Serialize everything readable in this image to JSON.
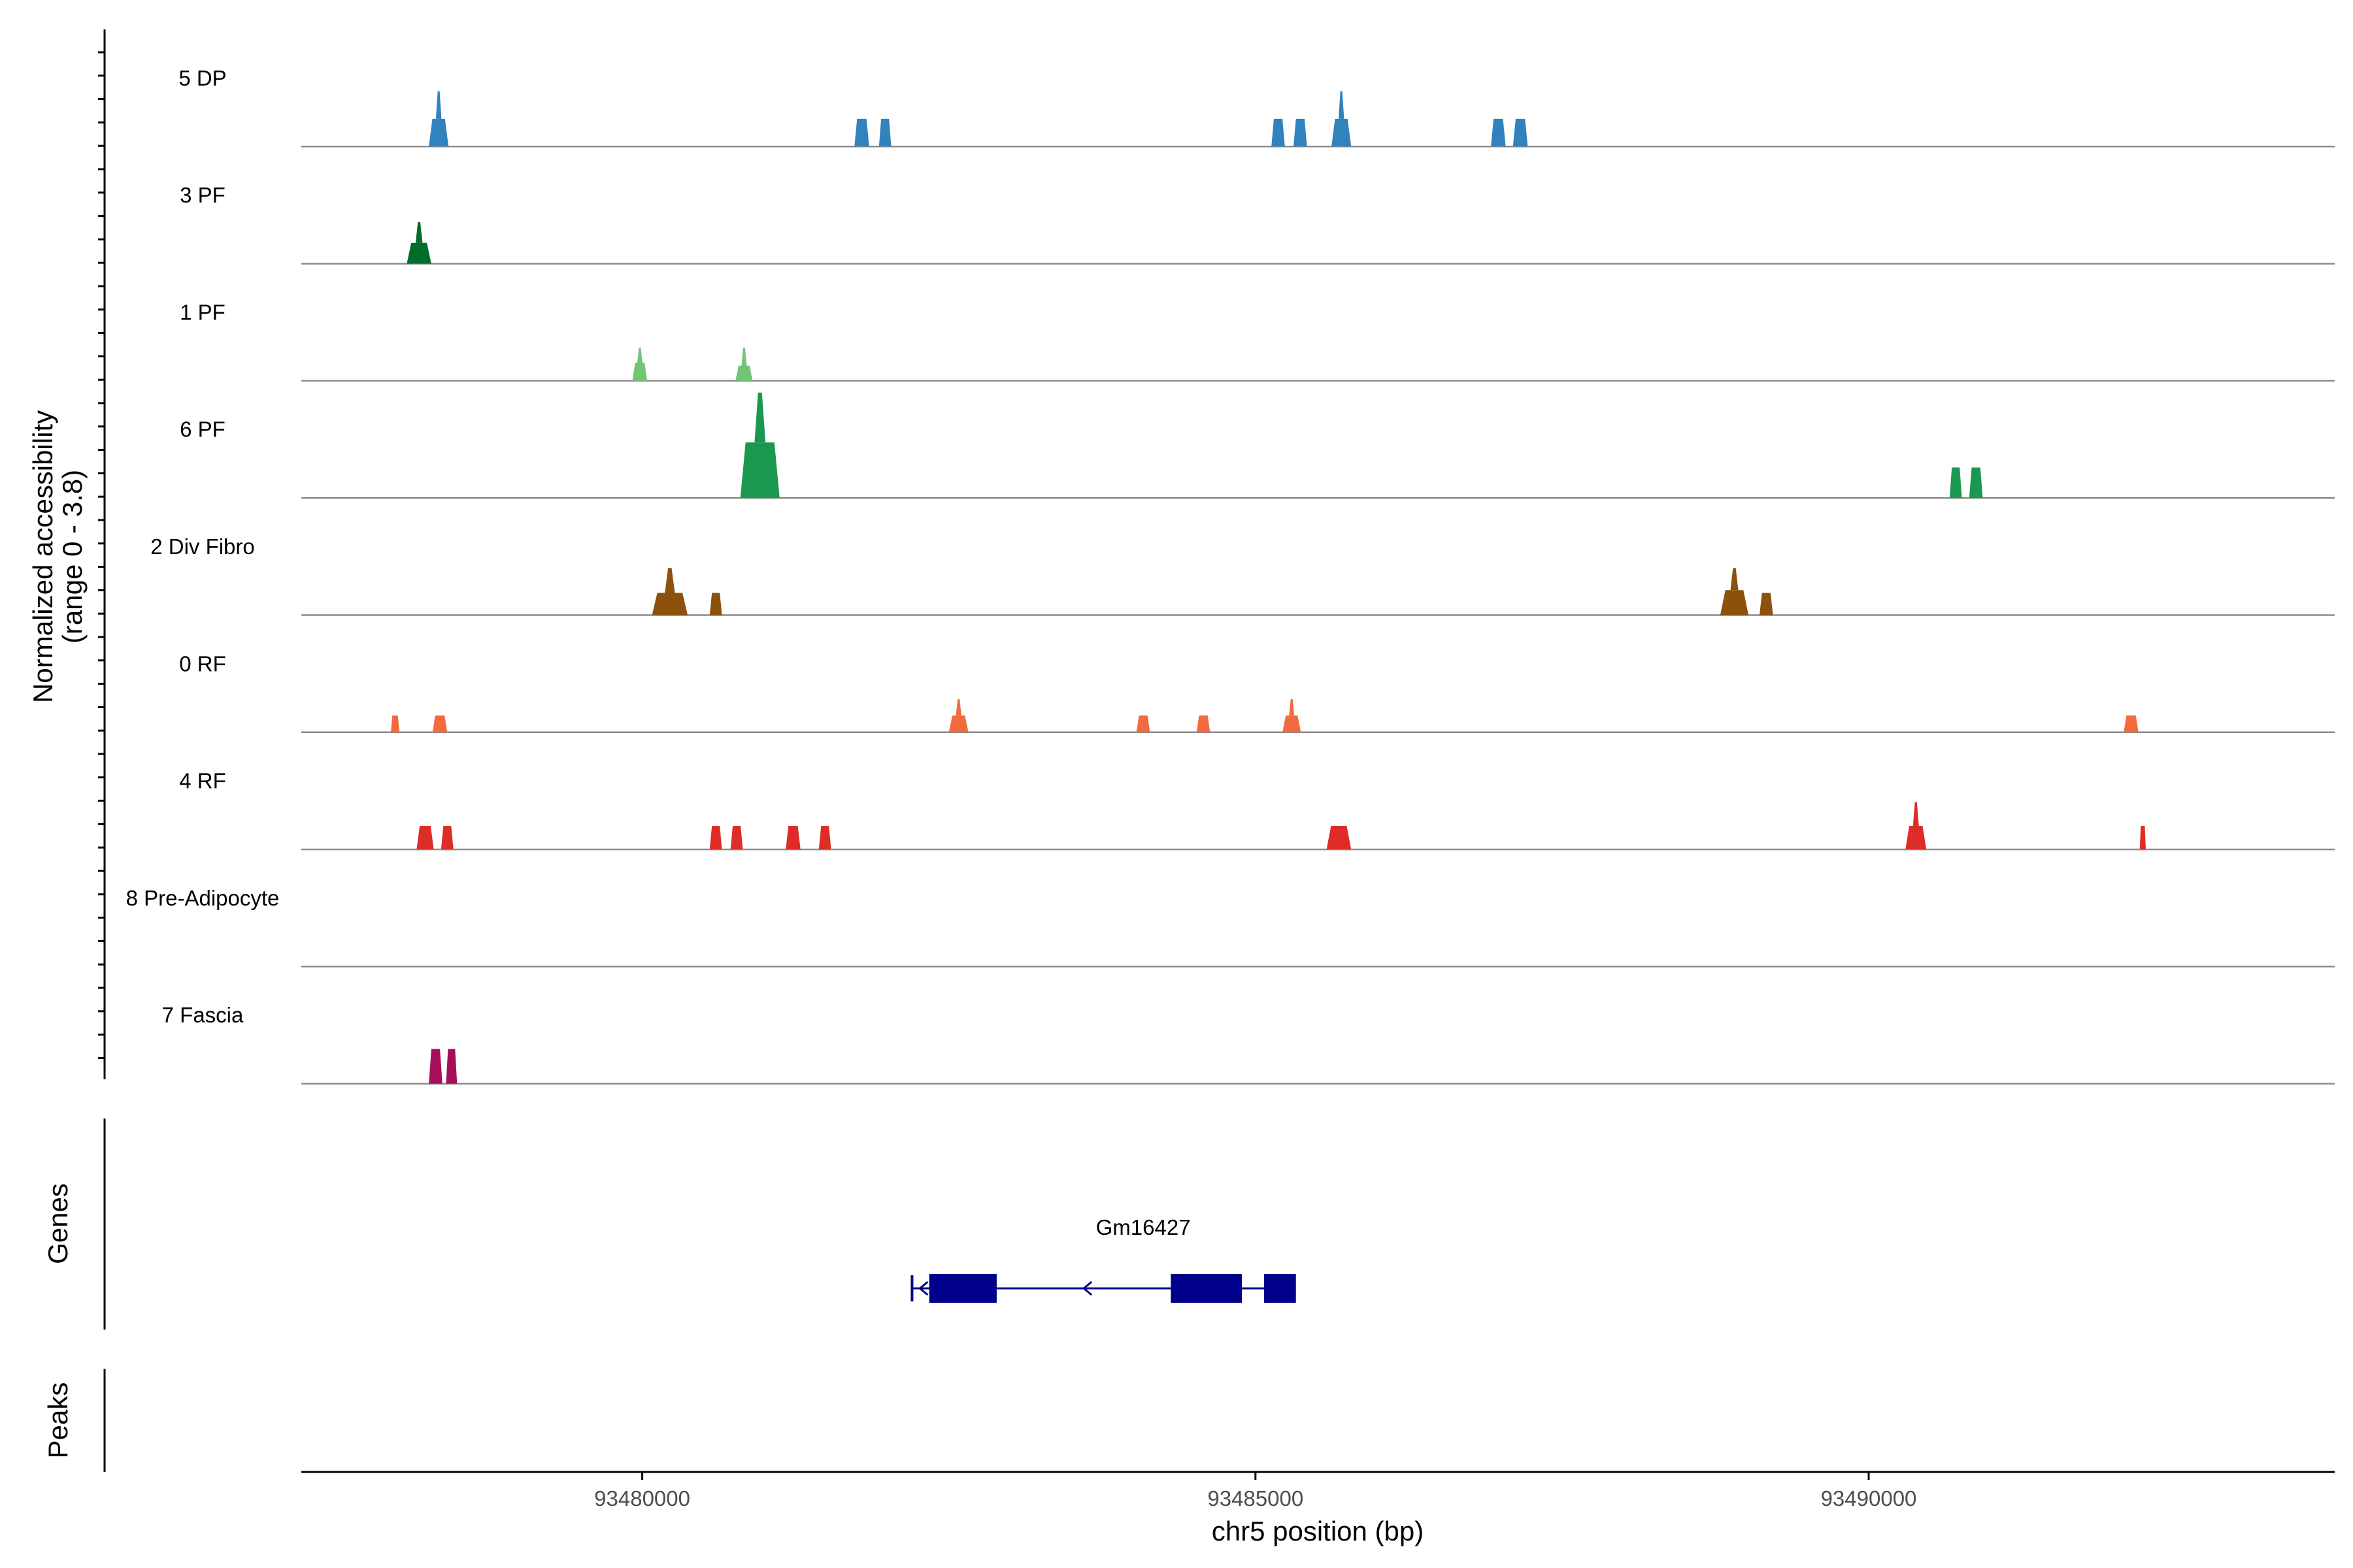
{
  "chart_data": {
    "type": "area",
    "title": "",
    "xlabel": "chr5 position (bp)",
    "ylabel_line1": "Normalized accessibility",
    "ylabel_line2": "(range 0 - 3.8)",
    "yrange": [
      0,
      3.8
    ],
    "xlim": [
      93477220,
      93493800
    ],
    "x_ticks": [
      {
        "value": 93480000,
        "label": "93480000"
      },
      {
        "value": 93485000,
        "label": "93485000"
      },
      {
        "value": 93490000,
        "label": "93490000"
      }
    ],
    "grid": false,
    "tracks": [
      {
        "name": "5 DP",
        "color": "#3182bd",
        "peaks": [
          {
            "start": 93478260,
            "end": 93478420,
            "height": 1.0,
            "spike": 2.0
          },
          {
            "start": 93481730,
            "end": 93481850,
            "height": 1.0
          },
          {
            "start": 93481930,
            "end": 93482030,
            "height": 1.0
          },
          {
            "start": 93485130,
            "end": 93485240,
            "height": 1.0
          },
          {
            "start": 93485310,
            "end": 93485420,
            "height": 1.0
          },
          {
            "start": 93485620,
            "end": 93485780,
            "height": 1.0,
            "spike": 2.0
          },
          {
            "start": 93486920,
            "end": 93487040,
            "height": 1.0
          },
          {
            "start": 93487100,
            "end": 93487220,
            "height": 1.0
          }
        ]
      },
      {
        "name": "3 PF",
        "color": "#006d2c",
        "peaks": [
          {
            "start": 93478080,
            "end": 93478280,
            "height": 0.75,
            "spike": 1.5
          }
        ]
      },
      {
        "name": "1 PF",
        "color": "#74c476",
        "peaks": [
          {
            "start": 93479920,
            "end": 93480040,
            "height": 0.65,
            "spike": 1.2
          },
          {
            "start": 93480760,
            "end": 93480900,
            "height": 0.55,
            "spike": 1.2
          }
        ]
      },
      {
        "name": "6 PF",
        "color": "#1a9850",
        "peaks": [
          {
            "start": 93480800,
            "end": 93481120,
            "height": 2.0,
            "spike": 3.8
          },
          {
            "start": 93490660,
            "end": 93490760,
            "height": 1.1
          },
          {
            "start": 93490820,
            "end": 93490930,
            "height": 1.1
          }
        ]
      },
      {
        "name": "2 Div Fibro",
        "color": "#8c510a",
        "peaks": [
          {
            "start": 93480080,
            "end": 93480370,
            "height": 0.8,
            "spike": 1.7
          },
          {
            "start": 93480550,
            "end": 93480650,
            "height": 0.8
          },
          {
            "start": 93488790,
            "end": 93489020,
            "height": 0.9,
            "spike": 1.7
          },
          {
            "start": 93489110,
            "end": 93489220,
            "height": 0.8
          }
        ]
      },
      {
        "name": "0 RF",
        "color": "#f26a3d",
        "peaks": [
          {
            "start": 93477950,
            "end": 93478020,
            "height": 0.6
          },
          {
            "start": 93478290,
            "end": 93478410,
            "height": 0.6
          },
          {
            "start": 93482500,
            "end": 93482660,
            "height": 0.6,
            "spike": 1.2
          },
          {
            "start": 93484030,
            "end": 93484140,
            "height": 0.6
          },
          {
            "start": 93484520,
            "end": 93484630,
            "height": 0.6
          },
          {
            "start": 93485220,
            "end": 93485370,
            "height": 0.6,
            "spike": 1.2
          },
          {
            "start": 93492080,
            "end": 93492200,
            "height": 0.6
          }
        ]
      },
      {
        "name": "4 RF",
        "color": "#de2d26",
        "peaks": [
          {
            "start": 93478160,
            "end": 93478300,
            "height": 0.85
          },
          {
            "start": 93478360,
            "end": 93478460,
            "height": 0.85
          },
          {
            "start": 93480550,
            "end": 93480650,
            "height": 0.85
          },
          {
            "start": 93480720,
            "end": 93480820,
            "height": 0.85
          },
          {
            "start": 93481170,
            "end": 93481290,
            "height": 0.85
          },
          {
            "start": 93481440,
            "end": 93481540,
            "height": 0.85
          },
          {
            "start": 93485580,
            "end": 93485780,
            "height": 0.85
          },
          {
            "start": 93490300,
            "end": 93490470,
            "height": 0.85,
            "spike": 1.7
          },
          {
            "start": 93492210,
            "end": 93492260,
            "height": 0.85
          }
        ]
      },
      {
        "name": "8 Pre-Adipocyte",
        "color": "#4a1486",
        "peaks": []
      },
      {
        "name": "7 Fascia",
        "color": "#a50f5a",
        "peaks": [
          {
            "start": 93478260,
            "end": 93478370,
            "height": 1.25
          },
          {
            "start": 93478400,
            "end": 93478490,
            "height": 1.25
          }
        ]
      }
    ],
    "genes": [
      {
        "name": "Gm16427",
        "color": "#00008b",
        "strand": "-",
        "start": 93482200,
        "end": 93485330,
        "exons": [
          [
            93482340,
            93482890
          ],
          [
            93484310,
            93484890
          ],
          [
            93485070,
            93485330
          ]
        ]
      }
    ],
    "panels": {
      "genes_label": "Genes",
      "peaks_label": "Peaks"
    }
  }
}
